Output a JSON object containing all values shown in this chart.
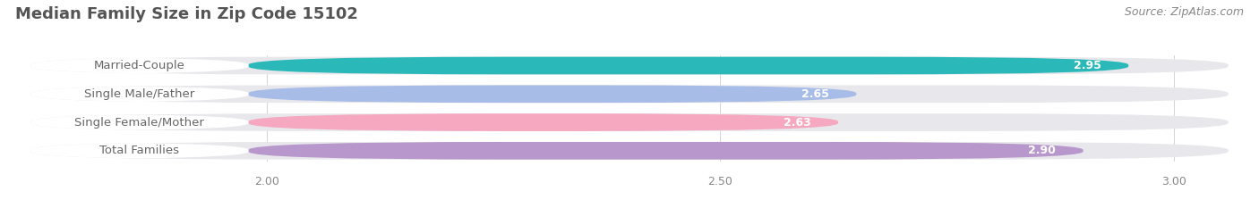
{
  "title": "Median Family Size in Zip Code 15102",
  "source": "Source: ZipAtlas.com",
  "categories": [
    "Married-Couple",
    "Single Male/Father",
    "Single Female/Mother",
    "Total Families"
  ],
  "values": [
    2.95,
    2.65,
    2.63,
    2.9
  ],
  "bar_colors": [
    "#2ab8b8",
    "#a8bce8",
    "#f5a8c0",
    "#b898cc"
  ],
  "bar_bg_color": "#e8e8ec",
  "xlim_left": 1.72,
  "xlim_right": 3.08,
  "data_min": 2.0,
  "xticks": [
    2.0,
    2.5,
    3.0
  ],
  "title_fontsize": 13,
  "source_fontsize": 9,
  "label_fontsize": 9.5,
  "value_fontsize": 9,
  "tick_fontsize": 9,
  "bar_height": 0.62,
  "background_color": "#ffffff",
  "text_color": "#555555",
  "source_color": "#888888",
  "label_text_color": "#666666",
  "value_text_color": "#ffffff"
}
